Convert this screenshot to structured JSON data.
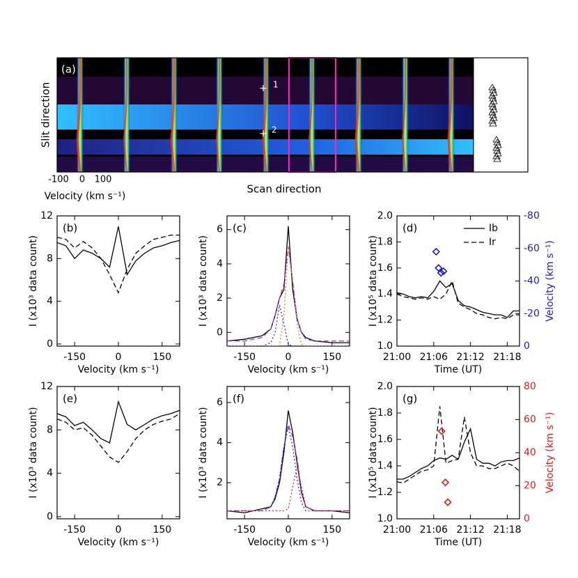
{
  "chart_data": [
    {
      "type": "image",
      "label": "(a)",
      "ylabel": "Slit direction",
      "xlabel": "Scan direction",
      "velocity_label": "Velocity (km s⁻¹)",
      "velocity_ticks": [
        -100,
        0,
        100
      ],
      "annotations": [
        "1",
        "2"
      ]
    },
    {
      "type": "line",
      "label": "(b)",
      "xlabel": "Velocity (km s⁻¹)",
      "ylabel": "I (x10³ data count)",
      "xlim": [
        -210,
        210
      ],
      "xticks": [
        -150,
        0,
        150
      ],
      "ylim": [
        -0.2,
        12
      ],
      "yticks": [
        0,
        4,
        8,
        12
      ],
      "x": [
        -210,
        -180,
        -150,
        -120,
        -90,
        -60,
        -30,
        0,
        30,
        60,
        90,
        120,
        150,
        180,
        210
      ],
      "series": [
        {
          "color": "#000000",
          "style": "solid",
          "values": [
            9.5,
            9.2,
            8.0,
            8.8,
            8.5,
            8.0,
            7.2,
            11.0,
            6.5,
            7.8,
            8.5,
            9.0,
            9.2,
            9.5,
            9.7
          ]
        },
        {
          "color": "#000000",
          "style": "dashed",
          "values": [
            10.0,
            9.8,
            9.0,
            9.6,
            9.0,
            8.0,
            6.5,
            4.8,
            7.0,
            8.5,
            9.2,
            9.8,
            10.0,
            10.2,
            10.2
          ]
        }
      ]
    },
    {
      "type": "line",
      "label": "(c)",
      "xlabel": "Velocity (km s⁻¹)",
      "ylabel": "I (x10³ data count)",
      "xlim": [
        -210,
        210
      ],
      "xticks": [
        -150,
        0,
        150
      ],
      "ylim": [
        -0.8,
        6.8
      ],
      "yticks": [
        0,
        2,
        4,
        6
      ],
      "x": [
        -210,
        -150,
        -90,
        -60,
        -45,
        -30,
        -15,
        0,
        15,
        30,
        45,
        60,
        90,
        150,
        210
      ],
      "series": [
        {
          "color": "#000000",
          "style": "solid",
          "values": [
            -0.5,
            -0.4,
            -0.2,
            0.2,
            1.0,
            2.0,
            2.5,
            6.2,
            2.5,
            0.8,
            0.0,
            -0.3,
            -0.5,
            -0.6,
            -0.6
          ]
        },
        {
          "color": "#9b30d0",
          "style": "dashed",
          "values": [
            -0.5,
            -0.5,
            -0.3,
            0.2,
            1.0,
            2.0,
            2.8,
            5.0,
            3.0,
            0.8,
            0.0,
            -0.4,
            -0.5,
            -0.5,
            -0.5
          ]
        },
        {
          "color": "#2020e0",
          "style": "dotted",
          "values": [
            -0.8,
            -0.8,
            -0.8,
            -0.6,
            0.0,
            1.6,
            0.5,
            -0.7,
            -0.8,
            -0.8,
            -0.8,
            -0.8,
            -0.8,
            -0.8,
            -0.8
          ]
        },
        {
          "color": "#d08020",
          "style": "dotted",
          "values": [
            -0.8,
            -0.8,
            -0.8,
            -0.8,
            -0.8,
            -0.8,
            1.0,
            5.0,
            3.0,
            0.5,
            -0.7,
            -0.8,
            -0.8,
            -0.8,
            -0.8
          ]
        }
      ]
    },
    {
      "type": "line",
      "label": "(d)",
      "xlabel": "Time (UT)",
      "ylabel": "I (x10⁵ data count)",
      "y2label": "Velocity (km s⁻¹)",
      "y2color": "#1a1ad0",
      "legend": "upper right",
      "xlim": [
        0,
        20
      ],
      "xticks": [
        {
          "value": 0,
          "label": "21:00"
        },
        {
          "value": 6,
          "label": "21:06"
        },
        {
          "value": 12,
          "label": "21:12"
        },
        {
          "value": 18,
          "label": "21:18"
        }
      ],
      "ylim": [
        1.0,
        2.0
      ],
      "yticks": [
        {
          "value": 1,
          "label": "1.0"
        },
        1.2,
        1.4,
        1.6,
        1.8,
        {
          "value": 2,
          "label": "2.0"
        }
      ],
      "y2lim": [
        0,
        -80
      ],
      "y2ticks": [
        0,
        -20,
        -40,
        -60,
        -80
      ],
      "x": [
        0,
        1,
        2,
        3,
        4,
        5,
        6,
        7,
        8,
        9,
        10,
        11,
        12,
        13,
        14,
        15,
        16,
        17,
        18,
        19,
        20
      ],
      "series": [
        {
          "name": "Ib",
          "color": "#000000",
          "style": "solid",
          "values": [
            1.41,
            1.4,
            1.38,
            1.37,
            1.38,
            1.37,
            1.42,
            1.5,
            1.45,
            1.48,
            1.35,
            1.31,
            1.3,
            1.28,
            1.26,
            1.25,
            1.24,
            1.24,
            1.22,
            1.27,
            1.27
          ]
        },
        {
          "name": "Ir",
          "color": "#000000",
          "style": "dashed",
          "values": [
            1.4,
            1.38,
            1.37,
            1.36,
            1.37,
            1.36,
            1.38,
            1.36,
            1.4,
            1.5,
            1.33,
            1.3,
            1.28,
            1.25,
            1.24,
            1.22,
            1.21,
            1.22,
            1.21,
            1.24,
            1.24
          ]
        },
        {
          "type": "scatter",
          "axis": "y2",
          "color": "#1a1ad0",
          "x": [
            6.4,
            6.8,
            7.2,
            7.6
          ],
          "values": [
            -58,
            -48,
            -45,
            -46
          ]
        }
      ]
    },
    {
      "type": "line",
      "label": "(e)",
      "xlabel": "Velocity (km s⁻¹)",
      "ylabel": "I (x10³ data count)",
      "xlim": [
        -210,
        210
      ],
      "xticks": [
        -150,
        0,
        150
      ],
      "ylim": [
        -0.2,
        12
      ],
      "yticks": [
        0,
        4,
        8,
        12
      ],
      "x": [
        -210,
        -180,
        -150,
        -120,
        -90,
        -60,
        -30,
        0,
        30,
        60,
        90,
        120,
        150,
        180,
        210
      ],
      "series": [
        {
          "color": "#000000",
          "style": "solid",
          "values": [
            9.5,
            9.2,
            8.4,
            8.7,
            8.0,
            7.2,
            6.8,
            10.6,
            8.5,
            8.0,
            8.5,
            9.0,
            9.3,
            9.5,
            9.8
          ]
        },
        {
          "color": "#000000",
          "style": "dashed",
          "values": [
            9.0,
            8.7,
            8.0,
            8.2,
            7.5,
            6.5,
            5.5,
            5.0,
            6.0,
            7.2,
            8.0,
            8.5,
            8.8,
            9.0,
            9.5
          ]
        }
      ]
    },
    {
      "type": "line",
      "label": "(f)",
      "xlabel": "Velocity (km s⁻¹)",
      "ylabel": "I (x10³ data count)",
      "xlim": [
        -210,
        210
      ],
      "xticks": [
        -150,
        0,
        150
      ],
      "ylim": [
        0.2,
        6.8
      ],
      "yticks": [
        2,
        4,
        6
      ],
      "x": [
        -210,
        -150,
        -90,
        -60,
        -45,
        -30,
        -15,
        0,
        15,
        30,
        45,
        60,
        90,
        150,
        210
      ],
      "series": [
        {
          "color": "#000000",
          "style": "solid",
          "values": [
            0.6,
            0.5,
            0.7,
            0.8,
            1.2,
            2.0,
            3.5,
            5.6,
            4.5,
            3.0,
            1.5,
            0.8,
            0.6,
            0.6,
            0.5
          ]
        },
        {
          "color": "#9b30d0",
          "style": "dashed",
          "values": [
            0.6,
            0.6,
            0.6,
            0.8,
            1.3,
            2.2,
            3.8,
            4.9,
            4.3,
            3.2,
            1.6,
            0.8,
            0.6,
            0.6,
            0.6
          ]
        },
        {
          "color": "#2020e0",
          "style": "dotted",
          "values": [
            0.6,
            0.6,
            0.6,
            0.8,
            1.3,
            2.2,
            3.8,
            4.8,
            3.8,
            2.2,
            1.0,
            0.6,
            0.6,
            0.6,
            0.6
          ]
        },
        {
          "color": "#e02020",
          "style": "dotted",
          "values": [
            0.6,
            0.6,
            0.6,
            0.6,
            0.6,
            0.6,
            0.6,
            0.7,
            1.8,
            2.8,
            1.8,
            0.8,
            0.6,
            0.6,
            0.6
          ]
        }
      ]
    },
    {
      "type": "line",
      "label": "(g)",
      "xlabel": "Time (UT)",
      "ylabel": "I (x10⁵ data count)",
      "y2label": "Velocity (km s⁻¹)",
      "y2color": "#e01a1a",
      "xlim": [
        0,
        20
      ],
      "xticks": [
        {
          "value": 0,
          "label": "21:00"
        },
        {
          "value": 6,
          "label": "21:06"
        },
        {
          "value": 12,
          "label": "21:12"
        },
        {
          "value": 18,
          "label": "21:18"
        }
      ],
      "ylim": [
        1.0,
        2.0
      ],
      "yticks": [
        {
          "value": 1,
          "label": "1.0"
        },
        1.2,
        1.4,
        1.6,
        1.8,
        {
          "value": 2,
          "label": "2.0"
        }
      ],
      "y2lim": [
        0,
        80
      ],
      "y2ticks": [
        0,
        20,
        40,
        60,
        80
      ],
      "x": [
        0,
        1,
        2,
        3,
        4,
        5,
        6,
        7,
        8,
        9,
        10,
        11,
        12,
        13,
        14,
        15,
        16,
        17,
        18,
        19,
        20
      ],
      "series": [
        {
          "color": "#000000",
          "style": "solid",
          "values": [
            1.3,
            1.3,
            1.32,
            1.35,
            1.38,
            1.4,
            1.44,
            1.46,
            1.45,
            1.48,
            1.45,
            1.58,
            1.68,
            1.45,
            1.42,
            1.42,
            1.4,
            1.43,
            1.44,
            1.44,
            1.46
          ]
        },
        {
          "color": "#000000",
          "style": "dashed",
          "values": [
            1.28,
            1.27,
            1.3,
            1.33,
            1.36,
            1.37,
            1.4,
            1.85,
            1.42,
            1.44,
            1.45,
            1.77,
            1.5,
            1.4,
            1.4,
            1.38,
            1.38,
            1.4,
            1.42,
            1.4,
            1.36
          ]
        },
        {
          "type": "scatter",
          "axis": "y2",
          "color": "#e01a1a",
          "x": [
            7.3,
            7.9,
            8.3
          ],
          "values": [
            53,
            22,
            10
          ]
        }
      ]
    }
  ]
}
